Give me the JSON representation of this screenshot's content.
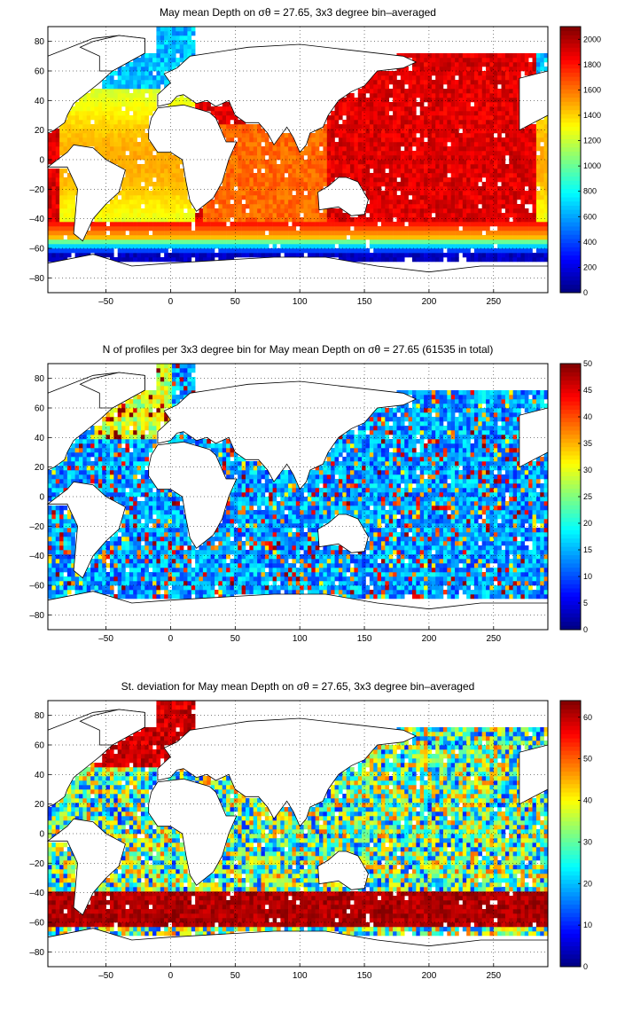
{
  "panels": [
    {
      "title": "May mean Depth on σθ = 27.65, 3x3 degree bin–averaged",
      "chart_data": {
        "type": "heatmap",
        "title": "May mean Depth on σθ = 27.65, 3x3 degree bin–averaged",
        "xlim": [
          -95,
          292
        ],
        "ylim": [
          -90,
          90
        ],
        "xticks": [
          -50,
          0,
          50,
          100,
          150,
          200,
          250
        ],
        "yticks": [
          -80,
          -60,
          -40,
          -20,
          0,
          20,
          40,
          60,
          80
        ],
        "grid": true,
        "colorbar": {
          "range": [
            0,
            2100
          ],
          "ticks": [
            0,
            200,
            400,
            600,
            800,
            1000,
            1200,
            1400,
            1600,
            1800,
            2000
          ],
          "colormap": "jet"
        },
        "field": "depth"
      }
    },
    {
      "title": "N of profiles per 3x3 degree bin for May mean Depth on σθ = 27.65 (61535 in total)",
      "chart_data": {
        "type": "heatmap",
        "title": "N of profiles per 3x3 degree bin for May mean Depth on σθ = 27.65 (61535 in total)",
        "xlim": [
          -95,
          292
        ],
        "ylim": [
          -90,
          90
        ],
        "xticks": [
          -50,
          0,
          50,
          100,
          150,
          200,
          250
        ],
        "yticks": [
          -80,
          -60,
          -40,
          -20,
          0,
          20,
          40,
          60,
          80
        ],
        "grid": true,
        "colorbar": {
          "range": [
            0,
            50
          ],
          "ticks": [
            0,
            5,
            10,
            15,
            20,
            25,
            30,
            35,
            40,
            45,
            50
          ],
          "colormap": "jet"
        },
        "field": "count"
      }
    },
    {
      "title": "St. deviation for May mean Depth on σθ = 27.65, 3x3 degree bin–averaged",
      "chart_data": {
        "type": "heatmap",
        "title": "St. deviation for May mean Depth on σθ = 27.65, 3x3 degree bin–averaged",
        "xlim": [
          -95,
          292
        ],
        "ylim": [
          -90,
          90
        ],
        "xticks": [
          -50,
          0,
          50,
          100,
          150,
          200,
          250
        ],
        "yticks": [
          -80,
          -60,
          -40,
          -20,
          0,
          20,
          40,
          60,
          80
        ],
        "grid": true,
        "colorbar": {
          "range": [
            0,
            64
          ],
          "ticks": [
            0,
            10,
            20,
            30,
            40,
            50,
            60
          ],
          "colormap": "jet"
        },
        "field": "stdev"
      }
    }
  ]
}
